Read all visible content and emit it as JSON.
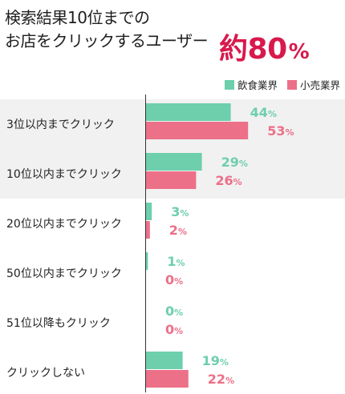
{
  "headline": {
    "line1": "検索結果10位までの",
    "line2": "お店をクリックするユーザー",
    "big_label": "約",
    "big_value": "80",
    "big_unit": "%"
  },
  "legend": [
    {
      "label": "飲食業界",
      "color": "#6dcfac"
    },
    {
      "label": "小売業界",
      "color": "#ec7088"
    }
  ],
  "chart_data": {
    "type": "bar",
    "orientation": "horizontal",
    "categories": [
      "3位以内までクリック",
      "10位以内までクリック",
      "20位以内までクリック",
      "50位以内までクリック",
      "51位以降もクリック",
      "クリックしない"
    ],
    "series": [
      {
        "name": "飲食業界",
        "color": "#6dcfac",
        "values": [
          44,
          29,
          3,
          1,
          0,
          19
        ]
      },
      {
        "name": "小売業界",
        "color": "#ec7088",
        "values": [
          53,
          26,
          2,
          0,
          0,
          22
        ]
      }
    ],
    "value_unit": "%",
    "highlighted_categories": [
      0,
      1
    ],
    "xlim": [
      0,
      100
    ]
  }
}
